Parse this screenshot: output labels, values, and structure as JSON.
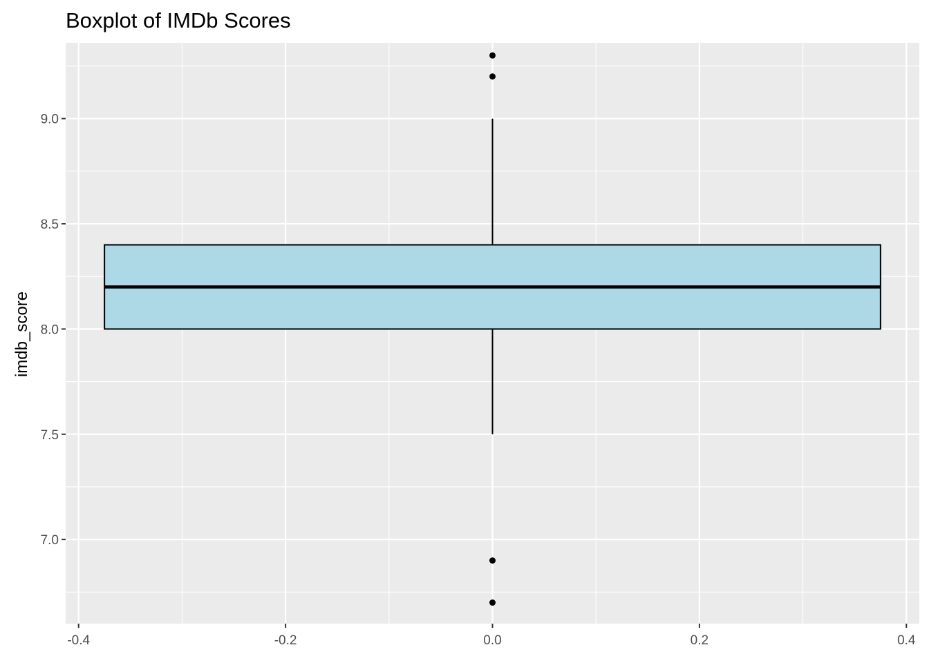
{
  "chart_data": {
    "type": "boxplot",
    "title": "Boxplot of IMDb Scores",
    "xlabel": "",
    "ylabel": "imdb_score",
    "xlim": [
      -0.4125,
      0.4125
    ],
    "ylim": [
      6.6,
      9.36
    ],
    "x_ticks": [
      -0.4,
      -0.2,
      0.0,
      0.2,
      0.4
    ],
    "x_tick_labels": [
      "-0.4",
      "-0.2",
      "0.0",
      "0.2",
      "0.4"
    ],
    "y_ticks": [
      7.0,
      7.5,
      8.0,
      8.5,
      9.0
    ],
    "y_tick_labels": [
      "7.0",
      "7.5",
      "8.0",
      "8.5",
      "9.0"
    ],
    "grid": true,
    "box": {
      "x_center": 0.0,
      "x_min": -0.375,
      "x_max": 0.375,
      "lower_whisker": 7.5,
      "q1": 8.0,
      "median": 8.2,
      "q3": 8.4,
      "upper_whisker": 9.0,
      "outliers": [
        9.3,
        9.2,
        6.9,
        6.7
      ]
    },
    "colors": {
      "panel_background": "#ebebeb",
      "grid": "#ffffff",
      "box_fill": "#add8e6",
      "box_line": "#000000",
      "outlier": "#000000",
      "tick_text": "#4d4d4d"
    }
  }
}
